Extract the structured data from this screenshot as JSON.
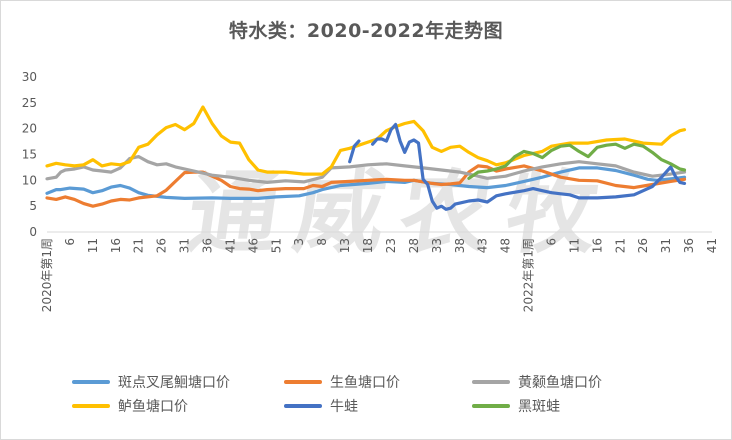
{
  "chart_data": {
    "type": "line",
    "title": "特水类：2020-2022年走势图",
    "ylim": [
      0,
      30
    ],
    "yticks": [
      0,
      5,
      10,
      15,
      20,
      25,
      30
    ],
    "grid": false,
    "legend_position": "bottom",
    "watermark": "通威农牧",
    "x_ticks": [
      {
        "i": 0,
        "label": "2020年第1周"
      },
      {
        "i": 5,
        "label": "6"
      },
      {
        "i": 10,
        "label": "11"
      },
      {
        "i": 15,
        "label": "16"
      },
      {
        "i": 20,
        "label": "21"
      },
      {
        "i": 25,
        "label": "26"
      },
      {
        "i": 30,
        "label": "31"
      },
      {
        "i": 35,
        "label": "36"
      },
      {
        "i": 40,
        "label": "41"
      },
      {
        "i": 45,
        "label": "46"
      },
      {
        "i": 50,
        "label": "51"
      },
      {
        "i": 55,
        "label": "3"
      },
      {
        "i": 60,
        "label": "8"
      },
      {
        "i": 65,
        "label": "13"
      },
      {
        "i": 70,
        "label": "18"
      },
      {
        "i": 75,
        "label": "23"
      },
      {
        "i": 80,
        "label": "28"
      },
      {
        "i": 85,
        "label": "33"
      },
      {
        "i": 90,
        "label": "38"
      },
      {
        "i": 95,
        "label": "43"
      },
      {
        "i": 100,
        "label": "48"
      },
      {
        "i": 105,
        "label": "2022年第1周"
      },
      {
        "i": 110,
        "label": "6"
      },
      {
        "i": 115,
        "label": "11"
      },
      {
        "i": 120,
        "label": "16"
      },
      {
        "i": 125,
        "label": "21"
      },
      {
        "i": 130,
        "label": "26"
      },
      {
        "i": 135,
        "label": "31"
      },
      {
        "i": 140,
        "label": "36"
      },
      {
        "i": 145,
        "label": "41"
      }
    ],
    "x_count": 146,
    "series": [
      {
        "name": "斑点叉尾鮰塘口价",
        "color": "#5b9bd5",
        "points": [
          [
            0,
            7.5
          ],
          [
            2,
            8.2
          ],
          [
            3,
            8.2
          ],
          [
            5,
            8.5
          ],
          [
            8,
            8.3
          ],
          [
            10,
            7.6
          ],
          [
            12,
            8.0
          ],
          [
            14,
            8.7
          ],
          [
            16,
            9.0
          ],
          [
            18,
            8.5
          ],
          [
            20,
            7.6
          ],
          [
            22,
            7.1
          ],
          [
            26,
            6.7
          ],
          [
            30,
            6.5
          ],
          [
            36,
            6.6
          ],
          [
            40,
            6.5
          ],
          [
            46,
            6.5
          ],
          [
            50,
            6.8
          ],
          [
            55,
            7.0
          ],
          [
            58,
            7.6
          ],
          [
            60,
            8.2
          ],
          [
            64,
            9.0
          ],
          [
            70,
            9.4
          ],
          [
            74,
            9.8
          ],
          [
            78,
            9.6
          ],
          [
            80,
            10.0
          ],
          [
            84,
            9.4
          ],
          [
            88,
            9.2
          ],
          [
            92,
            8.8
          ],
          [
            96,
            8.6
          ],
          [
            100,
            9.0
          ],
          [
            104,
            9.8
          ],
          [
            108,
            10.6
          ],
          [
            112,
            11.6
          ],
          [
            116,
            12.4
          ],
          [
            120,
            12.4
          ],
          [
            124,
            11.9
          ],
          [
            128,
            11.0
          ],
          [
            131,
            10.2
          ],
          [
            133,
            10.0
          ],
          [
            137,
            10.4
          ],
          [
            139,
            10.6
          ]
        ],
        "gap_after": [
          1
        ]
      },
      {
        "name": "生鱼塘口价",
        "color": "#ed7d31",
        "points": [
          [
            0,
            6.6
          ],
          [
            2,
            6.3
          ],
          [
            4,
            6.8
          ],
          [
            6,
            6.3
          ],
          [
            8,
            5.5
          ],
          [
            10,
            5.0
          ],
          [
            12,
            5.4
          ],
          [
            14,
            6.0
          ],
          [
            16,
            6.3
          ],
          [
            18,
            6.2
          ],
          [
            20,
            6.6
          ],
          [
            24,
            7.0
          ],
          [
            26,
            8.1
          ],
          [
            28,
            9.8
          ],
          [
            30,
            11.5
          ],
          [
            32,
            11.6
          ],
          [
            34,
            11.6
          ],
          [
            36,
            10.8
          ],
          [
            38,
            10.0
          ],
          [
            40,
            8.8
          ],
          [
            42,
            8.4
          ],
          [
            44,
            8.3
          ],
          [
            46,
            8.0
          ],
          [
            48,
            8.2
          ],
          [
            52,
            8.4
          ],
          [
            56,
            8.4
          ],
          [
            58,
            9.0
          ],
          [
            60,
            8.8
          ],
          [
            62,
            9.6
          ],
          [
            66,
            9.8
          ],
          [
            70,
            10.0
          ],
          [
            74,
            10.2
          ],
          [
            78,
            10.0
          ],
          [
            80,
            10.0
          ],
          [
            84,
            9.4
          ],
          [
            86,
            9.2
          ],
          [
            88,
            9.3
          ],
          [
            90,
            9.5
          ],
          [
            92,
            11.6
          ],
          [
            94,
            12.8
          ],
          [
            96,
            12.6
          ],
          [
            98,
            11.8
          ],
          [
            100,
            12.2
          ],
          [
            104,
            12.8
          ],
          [
            108,
            11.8
          ],
          [
            112,
            10.6
          ],
          [
            116,
            10.0
          ],
          [
            120,
            9.9
          ],
          [
            124,
            9.0
          ],
          [
            128,
            8.6
          ],
          [
            132,
            9.2
          ],
          [
            136,
            9.8
          ],
          [
            139,
            10.2
          ]
        ],
        "gap_after": []
      },
      {
        "name": "黄颡鱼塘口价",
        "color": "#a5a5a5",
        "points": [
          [
            0,
            10.3
          ],
          [
            2,
            10.6
          ],
          [
            3,
            11.6
          ],
          [
            4,
            12.0
          ],
          [
            6,
            12.2
          ],
          [
            8,
            12.6
          ],
          [
            10,
            12.0
          ],
          [
            12,
            11.8
          ],
          [
            14,
            11.6
          ],
          [
            16,
            12.4
          ],
          [
            18,
            14.2
          ],
          [
            20,
            14.6
          ],
          [
            22,
            13.6
          ],
          [
            24,
            13.0
          ],
          [
            26,
            13.2
          ],
          [
            28,
            12.6
          ],
          [
            32,
            11.8
          ],
          [
            36,
            11.0
          ],
          [
            40,
            10.6
          ],
          [
            44,
            10.0
          ],
          [
            48,
            9.6
          ],
          [
            52,
            9.9
          ],
          [
            56,
            9.7
          ],
          [
            60,
            10.6
          ],
          [
            62,
            12.4
          ],
          [
            66,
            12.6
          ],
          [
            70,
            13.0
          ],
          [
            74,
            13.2
          ],
          [
            78,
            12.8
          ],
          [
            82,
            12.4
          ],
          [
            86,
            12.0
          ],
          [
            90,
            11.6
          ],
          [
            94,
            10.8
          ],
          [
            96,
            10.4
          ],
          [
            100,
            10.8
          ],
          [
            104,
            11.8
          ],
          [
            108,
            12.6
          ],
          [
            112,
            13.2
          ],
          [
            116,
            13.6
          ],
          [
            120,
            13.2
          ],
          [
            124,
            12.8
          ],
          [
            128,
            11.6
          ],
          [
            132,
            10.8
          ],
          [
            136,
            11.2
          ],
          [
            139,
            11.6
          ]
        ],
        "gap_after": []
      },
      {
        "name": "鲈鱼塘口价",
        "color": "#ffc000",
        "points": [
          [
            0,
            12.8
          ],
          [
            2,
            13.3
          ],
          [
            4,
            13.0
          ],
          [
            6,
            12.8
          ],
          [
            8,
            13.0
          ],
          [
            10,
            14.0
          ],
          [
            12,
            12.8
          ],
          [
            14,
            13.2
          ],
          [
            16,
            13.0
          ],
          [
            18,
            13.6
          ],
          [
            20,
            16.4
          ],
          [
            22,
            17.0
          ],
          [
            24,
            18.8
          ],
          [
            26,
            20.2
          ],
          [
            28,
            20.8
          ],
          [
            30,
            19.8
          ],
          [
            32,
            21.0
          ],
          [
            34,
            24.2
          ],
          [
            36,
            21.0
          ],
          [
            38,
            18.6
          ],
          [
            40,
            17.4
          ],
          [
            42,
            17.2
          ],
          [
            44,
            14.0
          ],
          [
            46,
            12.0
          ],
          [
            48,
            11.6
          ],
          [
            52,
            11.6
          ],
          [
            56,
            11.2
          ],
          [
            60,
            11.2
          ],
          [
            62,
            12.6
          ],
          [
            64,
            15.8
          ],
          [
            66,
            16.2
          ],
          [
            68,
            16.8
          ],
          [
            70,
            17.4
          ],
          [
            72,
            18.0
          ],
          [
            74,
            19.6
          ],
          [
            76,
            20.4
          ],
          [
            78,
            21.0
          ],
          [
            80,
            21.4
          ],
          [
            82,
            19.6
          ],
          [
            84,
            16.4
          ],
          [
            86,
            15.6
          ],
          [
            88,
            16.4
          ],
          [
            90,
            16.6
          ],
          [
            92,
            15.4
          ],
          [
            94,
            14.4
          ],
          [
            96,
            13.8
          ],
          [
            98,
            13.0
          ],
          [
            100,
            13.4
          ],
          [
            104,
            14.8
          ],
          [
            108,
            15.6
          ],
          [
            110,
            16.6
          ],
          [
            114,
            17.2
          ],
          [
            118,
            17.2
          ],
          [
            122,
            17.8
          ],
          [
            126,
            18.0
          ],
          [
            130,
            17.2
          ],
          [
            134,
            17.0
          ],
          [
            136,
            18.6
          ],
          [
            138,
            19.6
          ],
          [
            139,
            19.8
          ]
        ],
        "gap_after": []
      },
      {
        "name": "牛蛙",
        "color": "#4472c4",
        "points": [
          [
            66,
            13.6
          ],
          [
            67,
            16.6
          ],
          [
            68,
            17.6
          ],
          [
            70,
            16.0
          ],
          [
            71,
            17.0
          ],
          [
            72,
            18.0
          ],
          [
            73,
            18.0
          ],
          [
            74,
            17.6
          ],
          [
            75,
            19.8
          ],
          [
            76,
            20.8
          ],
          [
            77,
            17.6
          ],
          [
            78,
            15.4
          ],
          [
            79,
            17.4
          ],
          [
            80,
            17.8
          ],
          [
            81,
            17.2
          ],
          [
            82,
            10.2
          ],
          [
            83,
            9.2
          ],
          [
            84,
            6.0
          ],
          [
            85,
            4.6
          ],
          [
            86,
            5.0
          ],
          [
            87,
            4.4
          ],
          [
            88,
            4.6
          ],
          [
            89,
            5.4
          ],
          [
            90,
            5.6
          ],
          [
            92,
            6.0
          ],
          [
            94,
            6.2
          ],
          [
            96,
            5.8
          ],
          [
            98,
            7.0
          ],
          [
            100,
            7.4
          ],
          [
            104,
            8.0
          ],
          [
            106,
            8.4
          ],
          [
            108,
            8.0
          ],
          [
            110,
            7.6
          ],
          [
            112,
            7.4
          ],
          [
            114,
            7.2
          ],
          [
            116,
            6.6
          ],
          [
            120,
            6.6
          ],
          [
            124,
            6.8
          ],
          [
            128,
            7.2
          ],
          [
            130,
            8.0
          ],
          [
            132,
            8.8
          ],
          [
            134,
            10.6
          ],
          [
            136,
            12.6
          ],
          [
            137,
            10.8
          ],
          [
            138,
            9.6
          ],
          [
            139,
            9.4
          ]
        ],
        "gap_after": [
          68,
          70
        ]
      },
      {
        "name": "黑斑蛙",
        "color": "#70ad47",
        "points": [
          [
            92,
            10.4
          ],
          [
            94,
            11.6
          ],
          [
            96,
            11.8
          ],
          [
            98,
            12.2
          ],
          [
            100,
            12.8
          ],
          [
            102,
            14.6
          ],
          [
            104,
            15.6
          ],
          [
            106,
            15.2
          ],
          [
            108,
            14.4
          ],
          [
            110,
            15.8
          ],
          [
            112,
            16.6
          ],
          [
            114,
            16.8
          ],
          [
            116,
            15.6
          ],
          [
            118,
            14.6
          ],
          [
            120,
            16.4
          ],
          [
            122,
            16.8
          ],
          [
            124,
            17.0
          ],
          [
            126,
            16.2
          ],
          [
            128,
            17.0
          ],
          [
            130,
            16.6
          ],
          [
            132,
            15.4
          ],
          [
            134,
            14.0
          ],
          [
            136,
            13.2
          ],
          [
            138,
            12.2
          ],
          [
            139,
            12.0
          ]
        ],
        "gap_after": []
      }
    ]
  }
}
